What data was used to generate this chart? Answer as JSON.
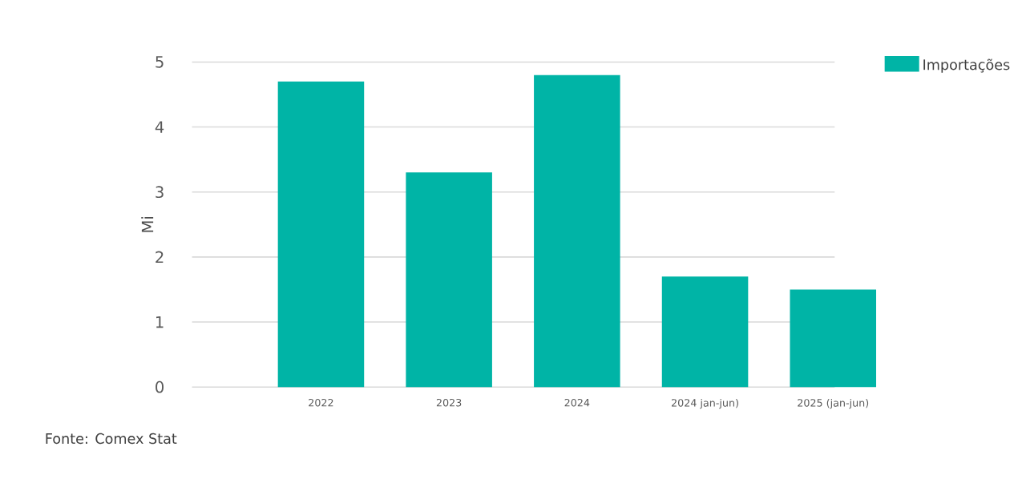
{
  "chart_data": {
    "type": "bar",
    "ylabel": "Mi",
    "categories": [
      "2022",
      "2023",
      "2024",
      "2024 jan-jun)",
      "2025 (jan-jun)"
    ],
    "series": [
      {
        "name": "Importações",
        "color": "#00b4a6",
        "values": [
          4.7,
          3.3,
          4.8,
          1.7,
          1.5
        ]
      }
    ],
    "ylim": [
      0,
      5
    ],
    "yticks": [
      0,
      1,
      2,
      3,
      4,
      5
    ],
    "grid": "y",
    "legend": "top right",
    "annotations": [
      "Fonte: Comex Stat"
    ]
  }
}
